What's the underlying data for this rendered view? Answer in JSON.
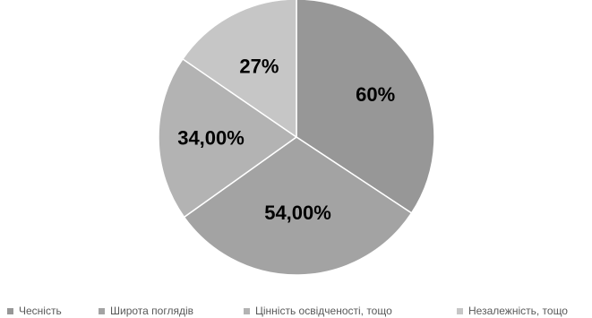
{
  "chart_data": {
    "type": "pie",
    "title": "",
    "slices": [
      {
        "name": "Чесність",
        "label": "60%",
        "value": 60,
        "color": "#979797"
      },
      {
        "name": "Широта поглядів",
        "label": "54,00%",
        "value": 54,
        "color": "#a3a3a3"
      },
      {
        "name": "Цінність освідченості, тощо",
        "label": "34,00%",
        "value": 34,
        "color": "#b3b3b3"
      },
      {
        "name": "Незалежність, тощо",
        "label": "27%",
        "value": 27,
        "color": "#c6c6c6"
      }
    ],
    "legend_position": "bottom",
    "start_angle_deg": 0,
    "direction": "clockwise"
  }
}
